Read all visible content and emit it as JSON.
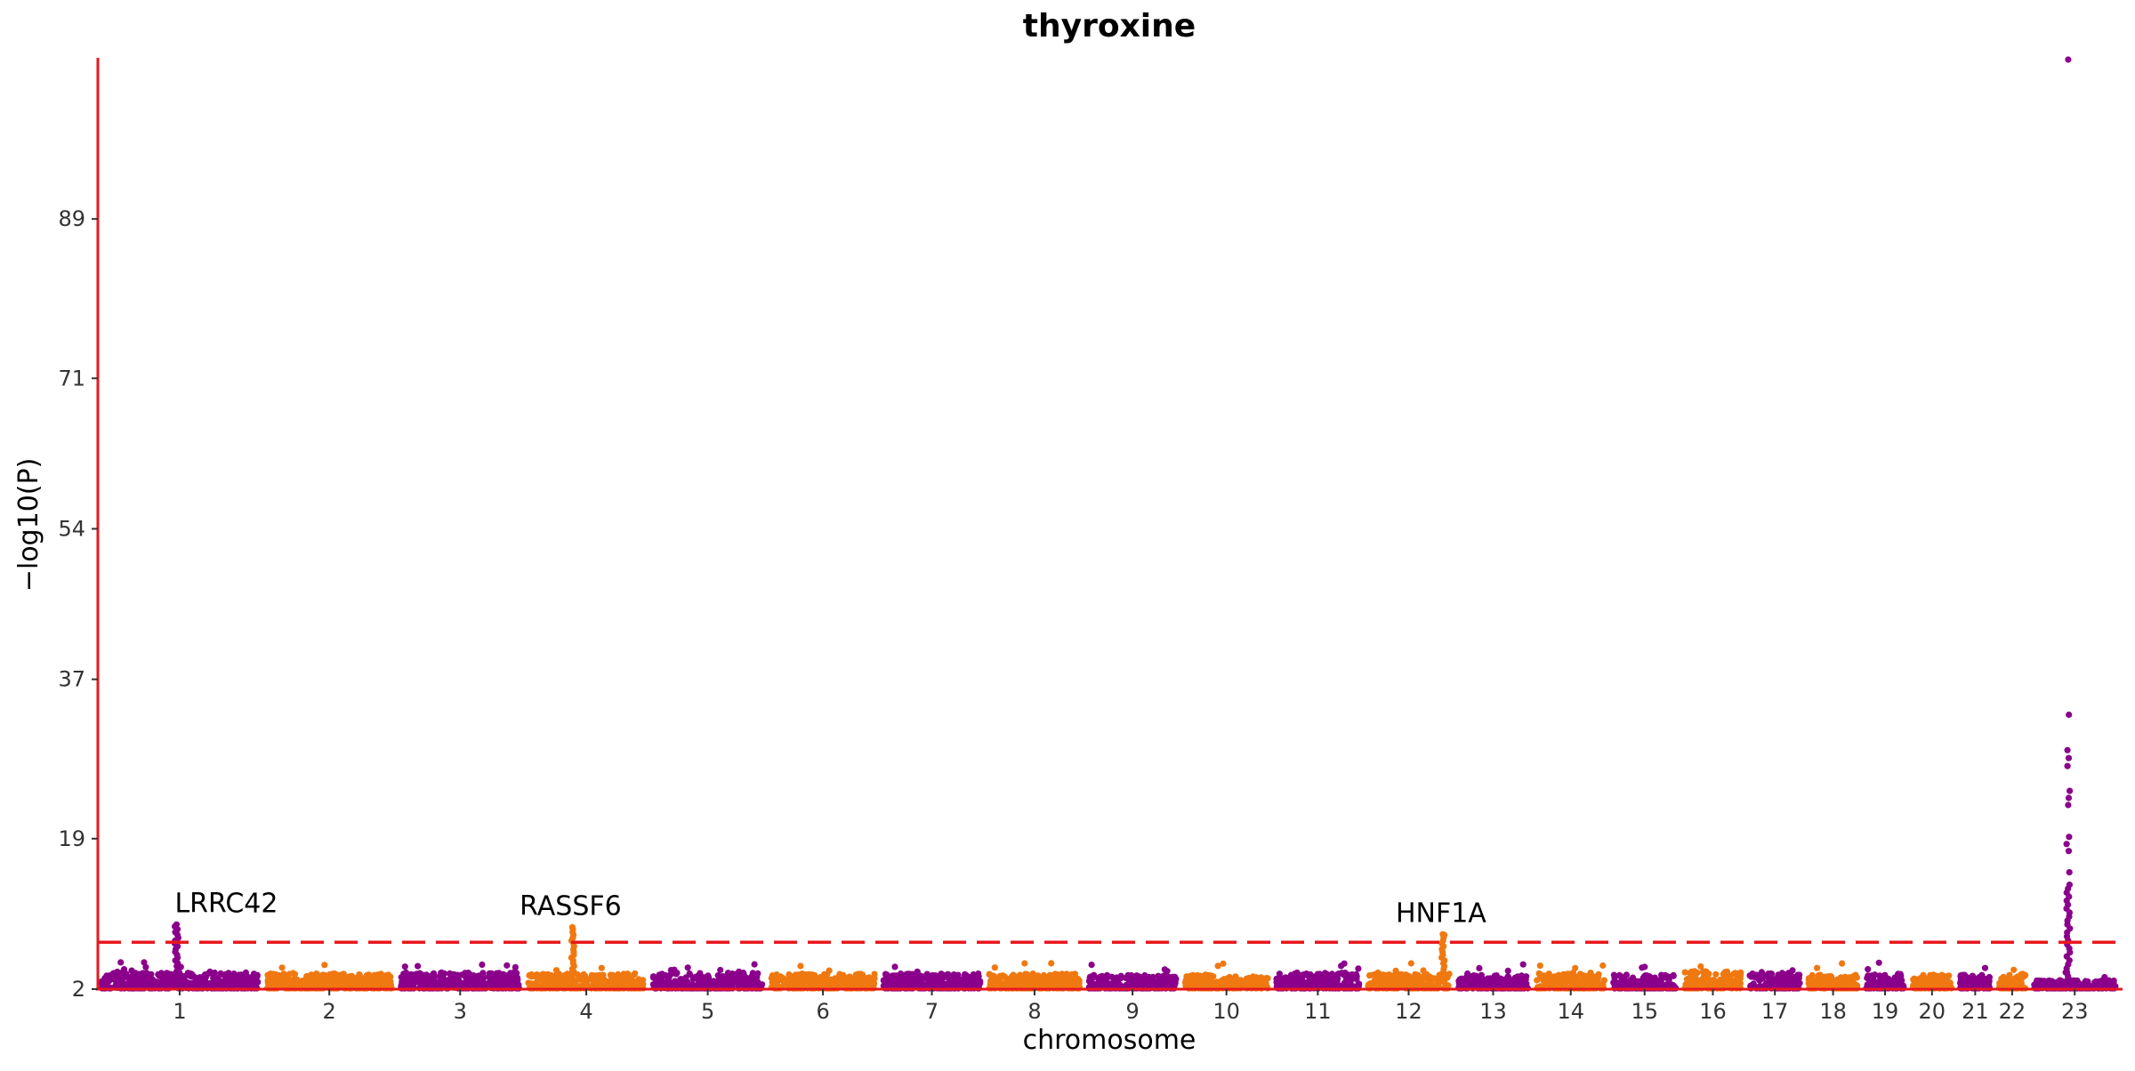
{
  "chart_data": {
    "type": "scatter",
    "title": "thyroxine",
    "xlabel": "chromosome",
    "ylabel": "−log10(P)",
    "ylim": [
      2,
      107
    ],
    "yticks": [
      2,
      19,
      37,
      54,
      71,
      89
    ],
    "chromosomes": [
      {
        "label": "1",
        "color": "purple",
        "base": 3.5
      },
      {
        "label": "2",
        "color": "orange",
        "base": 3.4
      },
      {
        "label": "3",
        "color": "purple",
        "base": 3.5
      },
      {
        "label": "4",
        "color": "orange",
        "base": 3.4
      },
      {
        "label": "5",
        "color": "purple",
        "base": 3.5
      },
      {
        "label": "6",
        "color": "orange",
        "base": 3.4
      },
      {
        "label": "7",
        "color": "purple",
        "base": 3.4
      },
      {
        "label": "8",
        "color": "orange",
        "base": 3.4
      },
      {
        "label": "9",
        "color": "purple",
        "base": 3.3
      },
      {
        "label": "10",
        "color": "orange",
        "base": 3.3
      },
      {
        "label": "11",
        "color": "purple",
        "base": 3.5
      },
      {
        "label": "12",
        "color": "orange",
        "base": 3.4
      },
      {
        "label": "13",
        "color": "purple",
        "base": 3.3
      },
      {
        "label": "14",
        "color": "orange",
        "base": 3.5
      },
      {
        "label": "15",
        "color": "purple",
        "base": 3.3
      },
      {
        "label": "16",
        "color": "orange",
        "base": 3.6
      },
      {
        "label": "17",
        "color": "purple",
        "base": 3.5
      },
      {
        "label": "18",
        "color": "orange",
        "base": 3.3
      },
      {
        "label": "19",
        "color": "purple",
        "base": 3.4
      },
      {
        "label": "20",
        "color": "orange",
        "base": 3.3
      },
      {
        "label": "21",
        "color": "purple",
        "base": 3.3
      },
      {
        "label": "22",
        "color": "orange",
        "base": 3.4
      },
      {
        "label": "23",
        "color": "purple",
        "base": 2.8
      }
    ],
    "peaks": [
      {
        "chrom": "1",
        "value": 9.3,
        "label": "LRRC42"
      },
      {
        "chrom": "4",
        "value": 9.0,
        "label": "RASSF6"
      },
      {
        "chrom": "12",
        "value": 8.2,
        "label": "HNF1A"
      },
      {
        "chrom": "23",
        "value": 107,
        "label": ""
      }
    ],
    "threshold": 7.3,
    "colors": {
      "purple": "#8b008b",
      "orange": "#f07810",
      "axis": "#e8181e",
      "threshold": "#e8181e"
    }
  }
}
